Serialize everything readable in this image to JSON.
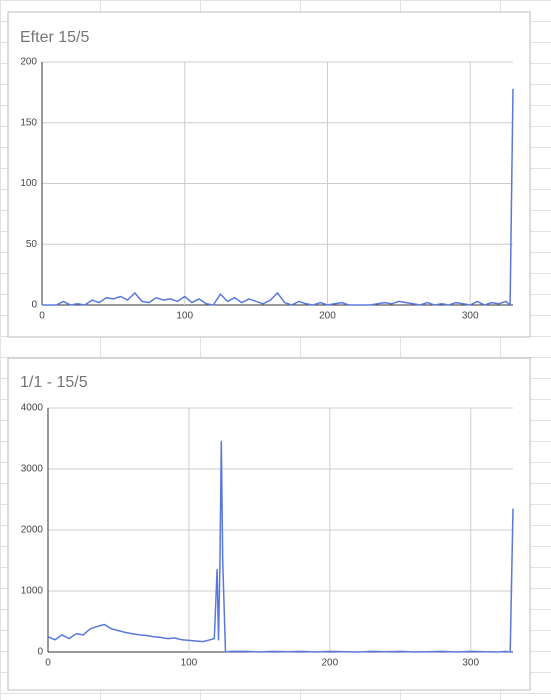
{
  "chart_data": [
    {
      "type": "line",
      "title": "Efter 15/5",
      "x": [
        0,
        5,
        10,
        15,
        20,
        25,
        30,
        35,
        40,
        45,
        50,
        55,
        60,
        65,
        70,
        75,
        80,
        85,
        90,
        95,
        100,
        105,
        110,
        115,
        120,
        125,
        130,
        135,
        140,
        145,
        150,
        155,
        160,
        165,
        170,
        175,
        180,
        185,
        190,
        195,
        200,
        205,
        210,
        215,
        220,
        225,
        230,
        235,
        240,
        245,
        250,
        255,
        260,
        265,
        270,
        275,
        280,
        285,
        290,
        295,
        300,
        305,
        310,
        315,
        320,
        325,
        328,
        330
      ],
      "series": [
        {
          "color": "#5a78dc",
          "values": [
            0,
            0,
            0,
            3,
            0,
            1,
            0,
            4,
            2,
            6,
            5,
            7,
            4,
            10,
            3,
            2,
            6,
            4,
            5,
            3,
            7,
            2,
            5,
            1,
            0,
            9,
            3,
            6,
            2,
            5,
            3,
            1,
            4,
            10,
            2,
            0,
            3,
            1,
            0,
            2,
            0,
            1,
            2,
            0,
            0,
            0,
            0,
            1,
            2,
            1,
            3,
            2,
            1,
            0,
            2,
            0,
            1,
            0,
            2,
            1,
            0,
            3,
            0,
            2,
            1,
            3,
            0,
            178
          ]
        }
      ],
      "xlim": [
        0,
        330
      ],
      "xticks": [
        0,
        100,
        200,
        300
      ],
      "ylim": [
        0,
        200
      ],
      "yticks": [
        0,
        50,
        100,
        150,
        200
      ],
      "grid": true
    },
    {
      "type": "line",
      "title": "1/1 - 15/5",
      "x": [
        0,
        5,
        10,
        15,
        20,
        25,
        30,
        35,
        40,
        45,
        50,
        55,
        60,
        65,
        70,
        75,
        80,
        85,
        90,
        95,
        100,
        105,
        110,
        115,
        118,
        120,
        121,
        122,
        123,
        124,
        126,
        130,
        140,
        150,
        160,
        170,
        180,
        190,
        200,
        210,
        220,
        230,
        240,
        250,
        260,
        270,
        280,
        290,
        300,
        310,
        320,
        325,
        328,
        330
      ],
      "series": [
        {
          "color": "#5a78dc",
          "values": [
            250,
            200,
            280,
            220,
            300,
            280,
            380,
            420,
            450,
            380,
            350,
            320,
            300,
            280,
            270,
            250,
            240,
            220,
            230,
            200,
            190,
            180,
            170,
            200,
            220,
            1350,
            200,
            1400,
            3450,
            1500,
            0,
            10,
            10,
            0,
            10,
            5,
            10,
            0,
            10,
            5,
            0,
            10,
            5,
            10,
            0,
            5,
            10,
            0,
            10,
            5,
            0,
            10,
            0,
            2350
          ]
        }
      ],
      "xlim": [
        0,
        330
      ],
      "xticks": [
        0,
        100,
        200,
        300
      ],
      "ylim": [
        0,
        4000
      ],
      "yticks": [
        0,
        1000,
        2000,
        3000,
        4000
      ],
      "grid": true
    }
  ]
}
